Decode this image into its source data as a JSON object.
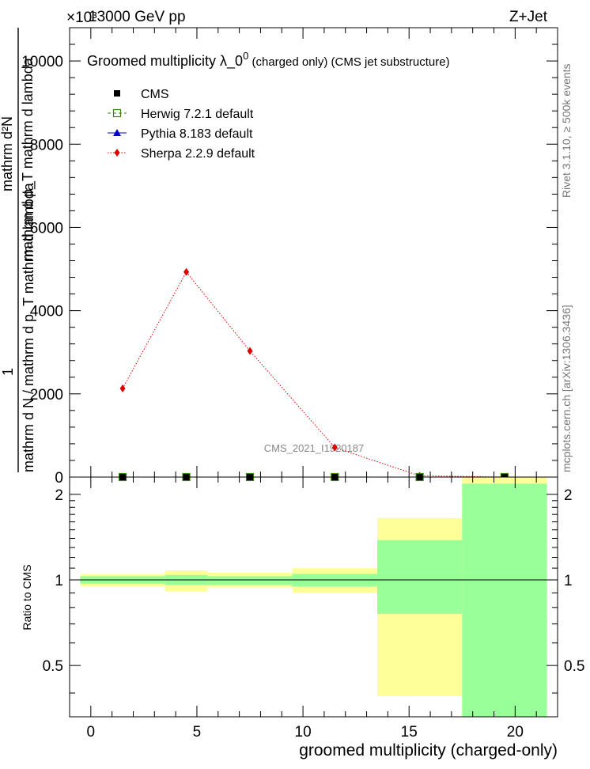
{
  "header": {
    "left": "13000 GeV pp",
    "right": "Z+Jet",
    "exponent": "×10³"
  },
  "side_labels": {
    "rivet": "Rivet 3.1.10, ≥ 500k events",
    "mcplots": "mcplots.cern.ch [arXiv:1306.3436]"
  },
  "watermark": "CMS_2021_I1920187",
  "chart_data": [
    {
      "type": "line",
      "title": "Groomed multiplicity  λ_0",
      "title_sup": "0",
      "title_suffix": " (charged only) (CMS jet substructure)",
      "ylabel_top": "1",
      "ylabel_bottom": "mathrm d N / mathrm d p_T mathrm d lambda",
      "ylabel_stack": [
        "mathrm d²N",
        "mathrm d p_T mathrm d lambda"
      ],
      "xlim": [
        -1,
        22
      ],
      "ylim": [
        0,
        10800
      ],
      "yticks": [
        0,
        2000,
        4000,
        6000,
        8000,
        10000
      ],
      "ytick_labels": [
        "0",
        "2000",
        "4000",
        "6000",
        "8000",
        "10000"
      ],
      "legend_position": "top-left",
      "series": [
        {
          "name": "CMS",
          "color": "#000000",
          "marker": "square",
          "x": [
            1.5,
            4.5,
            7.5,
            11.5,
            15.5,
            19.5
          ],
          "y": [
            0,
            0,
            0,
            0,
            0,
            0
          ]
        },
        {
          "name": "Herwig 7.2.1 default",
          "color": "#3a8a00",
          "marker": "open-square",
          "dash": "dashed",
          "x": [
            1.5,
            4.5,
            7.5,
            11.5,
            15.5,
            19.5
          ],
          "y": [
            0,
            0,
            0,
            0,
            0,
            0
          ]
        },
        {
          "name": "Pythia 8.183 default",
          "color": "#0000cc",
          "marker": "triangle",
          "dash": "solid",
          "x": [
            1.5,
            4.5,
            7.5,
            11.5,
            15.5,
            19.5
          ],
          "y": [
            0,
            0,
            0,
            0,
            0,
            0
          ]
        },
        {
          "name": "Sherpa 2.2.9 default",
          "color": "#dd0000",
          "marker": "diamond",
          "dash": "dotted",
          "x": [
            1.5,
            4.5,
            7.5,
            11.5,
            15.5,
            19.5
          ],
          "y": [
            2130,
            4930,
            3030,
            710,
            30,
            0
          ]
        }
      ]
    },
    {
      "type": "area",
      "ylabel": "Ratio to CMS",
      "xlabel": "groomed multiplicity (charged-only)",
      "xlim": [
        -1,
        22
      ],
      "ylim": [
        0.33,
        2.3
      ],
      "xticks": [
        0,
        5,
        10,
        15,
        20
      ],
      "xtick_labels": [
        "0",
        "5",
        "10",
        "15",
        "20"
      ],
      "yticks": [
        0.5,
        1,
        2
      ],
      "ytick_labels": [
        "0.5",
        "1",
        "2"
      ],
      "bins": [
        {
          "lo": -0.5,
          "hi": 3.5,
          "yellow": [
            0.95,
            1.05
          ],
          "green": [
            0.97,
            1.03
          ]
        },
        {
          "lo": 3.5,
          "hi": 5.5,
          "yellow": [
            0.91,
            1.08
          ],
          "green": [
            0.96,
            1.04
          ]
        },
        {
          "lo": 5.5,
          "hi": 9.5,
          "yellow": [
            0.94,
            1.06
          ],
          "green": [
            0.96,
            1.03
          ]
        },
        {
          "lo": 9.5,
          "hi": 13.5,
          "yellow": [
            0.9,
            1.1
          ],
          "green": [
            0.95,
            1.05
          ]
        },
        {
          "lo": 13.5,
          "hi": 17.5,
          "yellow": [
            0.39,
            1.65
          ],
          "green": [
            0.76,
            1.38
          ]
        },
        {
          "lo": 17.5,
          "hi": 21.5,
          "yellow": [
            0.33,
            2.3
          ],
          "green": [
            0.33,
            2.18
          ]
        }
      ]
    }
  ]
}
